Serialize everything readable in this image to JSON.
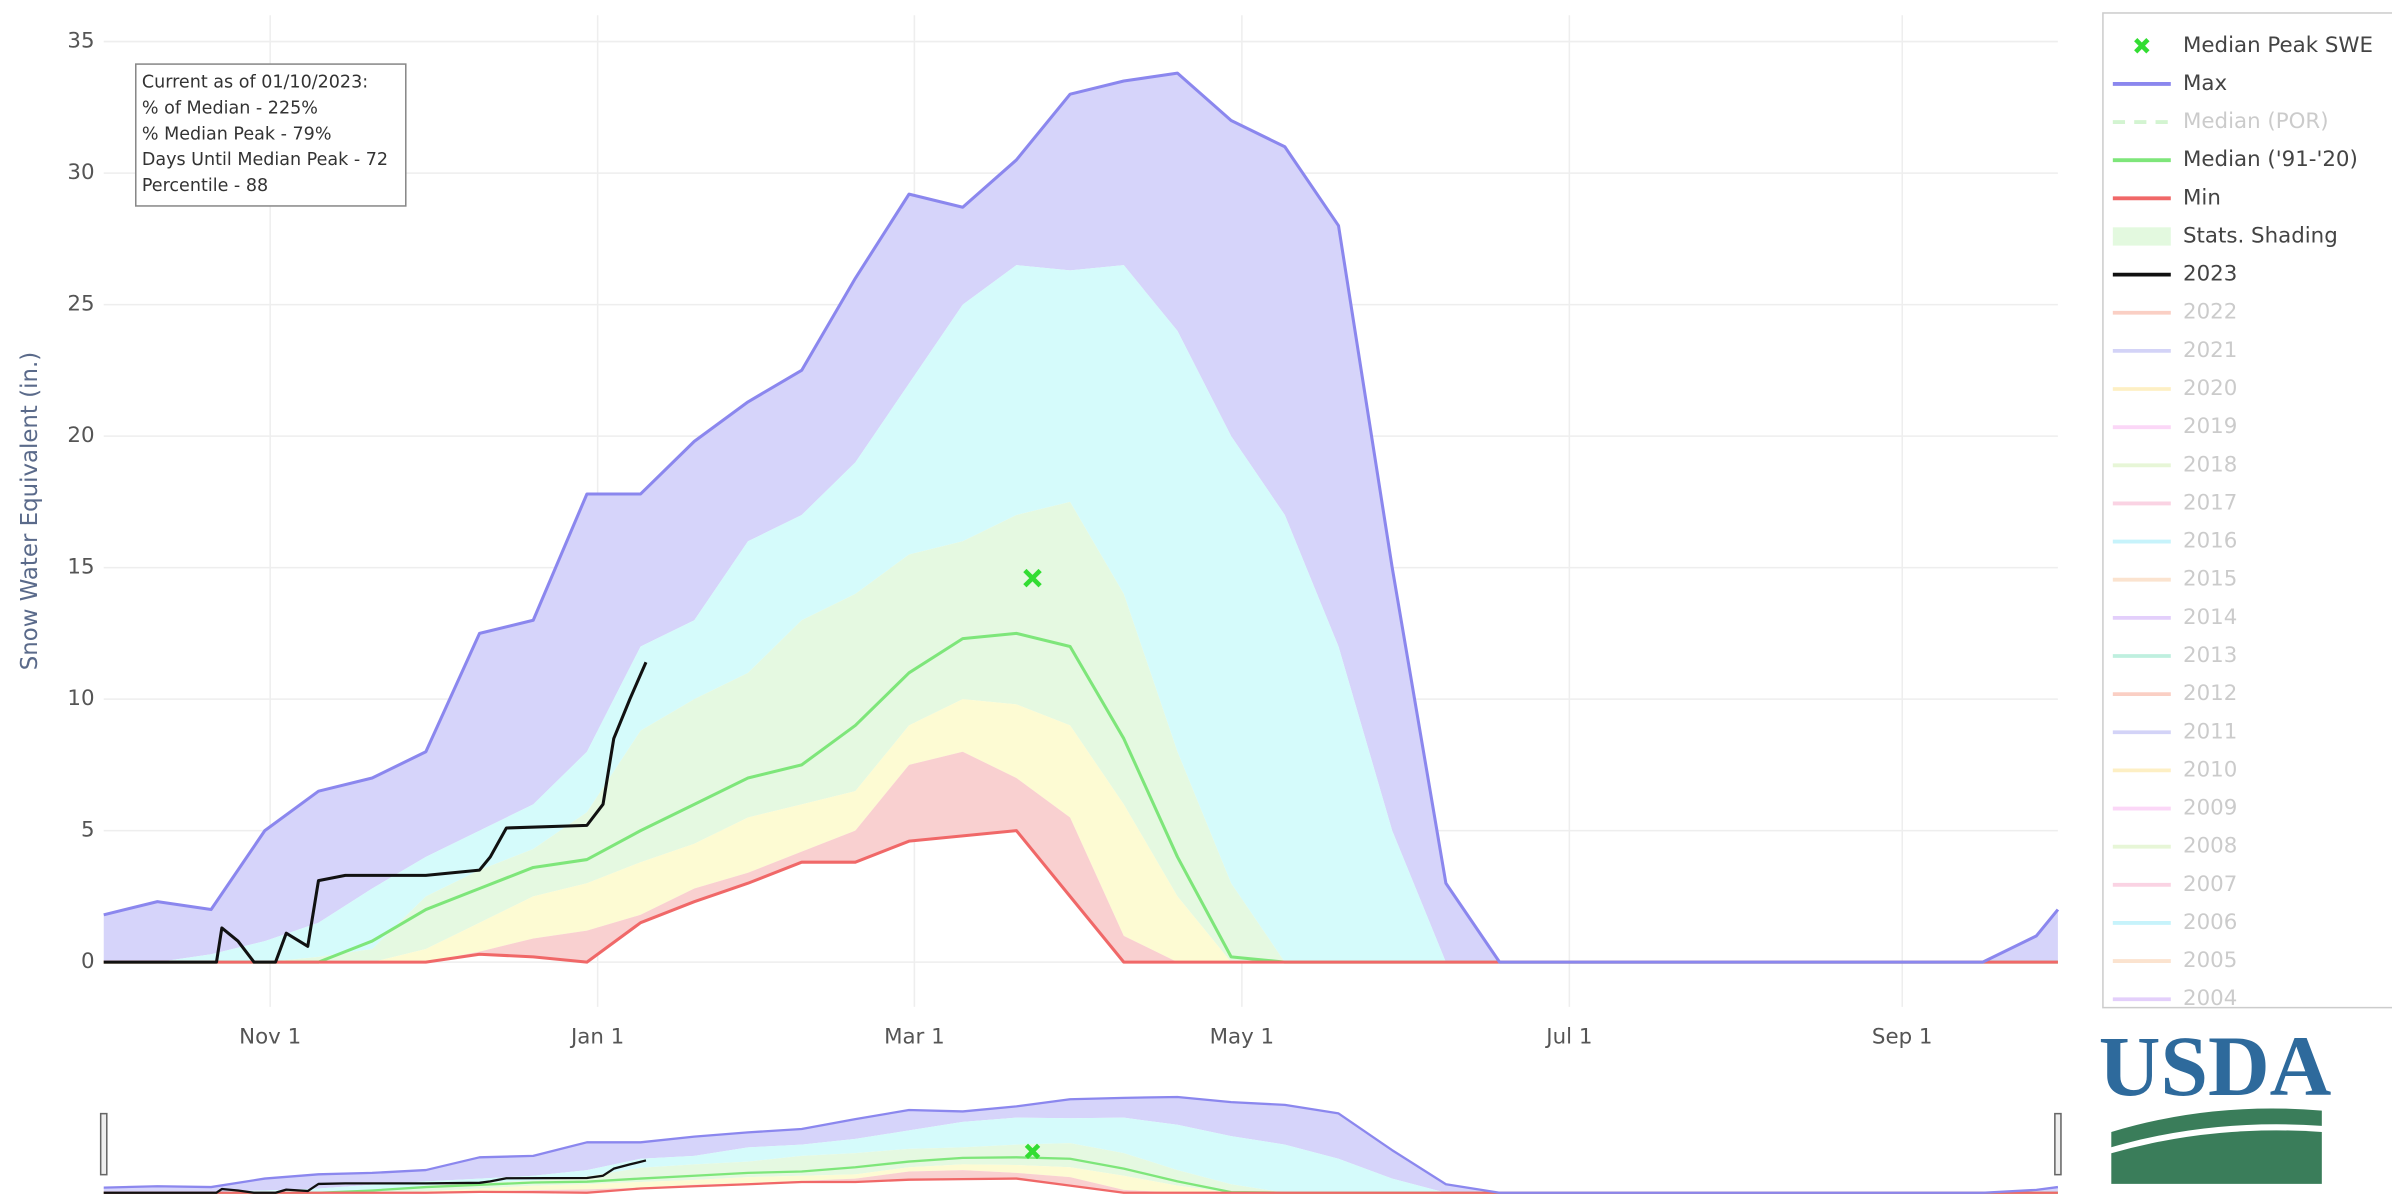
{
  "chart_data": {
    "type": "area",
    "y_label": "Snow Water Equivalent (in.)",
    "annotation": [
      "Current as of 01/10/2023:",
      "% of Median - 225%",
      "% Median Peak - 79%",
      "Days Until Median Peak - 72",
      "Percentile - 88"
    ],
    "x": [
      0,
      10,
      20,
      30,
      40,
      50,
      60,
      70,
      80,
      90,
      100,
      110,
      120,
      130,
      140,
      150,
      160,
      170,
      180,
      190,
      200,
      210,
      220,
      230,
      240,
      250,
      260,
      270,
      280,
      290,
      300,
      310,
      320,
      330,
      340,
      350,
      360,
      364
    ],
    "xlim": [
      0,
      364
    ],
    "xticks": [
      {
        "value": 31,
        "label": "Nov 1"
      },
      {
        "value": 92,
        "label": "Jan 1"
      },
      {
        "value": 151,
        "label": "Mar 1"
      },
      {
        "value": 212,
        "label": "May 1"
      },
      {
        "value": 273,
        "label": "Jul 1"
      },
      {
        "value": 335,
        "label": "Sep 1"
      }
    ],
    "ylim": [
      -1.7,
      36
    ],
    "yticks": [
      0,
      5,
      10,
      15,
      20,
      25,
      30,
      35
    ],
    "grid": true,
    "series": [
      {
        "name": "Max",
        "color": "#8b87ee",
        "values": [
          1.8,
          2.3,
          2.0,
          5.0,
          6.5,
          7.0,
          8.0,
          12.5,
          13.0,
          17.8,
          17.8,
          19.8,
          21.3,
          22.5,
          26,
          29.2,
          28.7,
          30.5,
          33,
          33.5,
          33.8,
          32,
          31,
          28,
          15,
          3,
          0,
          0,
          0,
          0,
          0,
          0,
          0,
          0,
          0,
          0,
          1.0,
          2.0
        ]
      },
      {
        "name": "Median ('91-'20)",
        "color": "#7ee67a",
        "values": [
          0,
          0,
          0,
          0,
          0,
          0.8,
          2.0,
          2.8,
          3.6,
          3.9,
          5.0,
          6.0,
          7.0,
          7.5,
          9.0,
          11,
          12.3,
          12.5,
          12,
          8.5,
          4,
          0.2,
          0,
          0,
          0,
          0,
          0,
          0,
          0,
          0,
          0,
          0,
          0,
          0,
          0,
          0,
          0,
          0
        ]
      },
      {
        "name": "Min",
        "color": "#f06868",
        "values": [
          0,
          0,
          0,
          0,
          0,
          0,
          0,
          0.3,
          0.2,
          0,
          1.5,
          2.3,
          3.0,
          3.8,
          3.8,
          4.6,
          4.8,
          5.0,
          2.5,
          0,
          0,
          0,
          0,
          0,
          0,
          0,
          0,
          0,
          0,
          0,
          0,
          0,
          0,
          0,
          0,
          0,
          0,
          0
        ]
      },
      {
        "name": "2023",
        "color": "#111111",
        "x": [
          0,
          21,
          22,
          25,
          28,
          32,
          34,
          38,
          40,
          45,
          60,
          70,
          72,
          75,
          90,
          93,
          95,
          98,
          101
        ],
        "values": [
          0,
          0,
          1.3,
          0.8,
          0,
          0,
          1.1,
          0.6,
          3.1,
          3.3,
          3.3,
          3.5,
          4.0,
          5.1,
          5.2,
          6,
          8.5,
          10,
          11.4
        ]
      }
    ],
    "shading": {
      "colors": [
        "#d6d4fa",
        "#d5fbfb",
        "#e5f9e1",
        "#fdfbd3",
        "#f9d0d0"
      ],
      "bounds": [
        [
          0,
          0,
          0.3,
          0.8,
          1.5,
          2.8,
          4,
          5,
          6,
          8,
          12,
          13,
          16,
          17,
          19,
          22,
          25,
          26.5,
          26.3,
          26.5,
          24,
          20,
          17,
          12,
          5,
          0,
          0,
          0,
          0,
          0,
          0,
          0,
          0,
          0,
          0,
          0,
          0,
          0
        ],
        [
          0,
          0,
          0,
          0,
          0.2,
          0.5,
          2.5,
          3.5,
          4.3,
          5.7,
          8.8,
          10,
          11,
          13,
          14,
          15.5,
          16,
          17,
          17.5,
          14,
          8,
          3,
          0,
          0,
          0,
          0,
          0,
          0,
          0,
          0,
          0,
          0,
          0,
          0,
          0,
          0,
          0,
          0
        ],
        [
          0,
          0,
          0,
          0,
          0,
          0,
          0.5,
          1.5,
          2.5,
          3,
          3.8,
          4.5,
          5.5,
          6,
          6.5,
          9,
          10,
          9.8,
          9,
          6,
          2.5,
          0,
          0,
          0,
          0,
          0,
          0,
          0,
          0,
          0,
          0,
          0,
          0,
          0,
          0,
          0,
          0,
          0
        ],
        [
          0,
          0,
          0,
          0,
          0,
          0,
          0,
          0.4,
          0.9,
          1.2,
          1.8,
          2.8,
          3.4,
          4.2,
          5,
          7.5,
          8,
          7,
          5.5,
          1,
          0,
          0,
          0,
          0,
          0,
          0,
          0,
          0,
          0,
          0,
          0,
          0,
          0,
          0,
          0,
          0,
          0,
          0
        ]
      ]
    },
    "median_peak": {
      "x": 173,
      "value": 14.6,
      "legend": 0
    },
    "legend": [
      {
        "name": "Median Peak SWE",
        "color": "#33dd33",
        "symbol": "x",
        "visible": true
      },
      {
        "series": 0,
        "visible": true
      },
      {
        "name": "Median (POR)",
        "color": "#a8eaa4",
        "symbol": "dash",
        "visible": false
      },
      {
        "series": 1,
        "visible": true
      },
      {
        "series": 2,
        "visible": true
      },
      {
        "name": "Stats. Shading",
        "color": "#e3f9df",
        "symbol": "rect",
        "visible": true
      },
      {
        "series": 3,
        "visible": true
      },
      {
        "name": "2022",
        "color": "#f6a08a",
        "symbol": "line",
        "visible": false
      },
      {
        "name": "2021",
        "color": "#a8a8f0",
        "symbol": "line",
        "visible": false
      },
      {
        "name": "2020",
        "color": "#fde08a",
        "symbol": "line",
        "visible": false
      },
      {
        "name": "2019",
        "color": "#f8b0f0",
        "symbol": "line",
        "visible": false
      },
      {
        "name": "2018",
        "color": "#d0eeb0",
        "symbol": "line",
        "visible": false
      },
      {
        "name": "2017",
        "color": "#f6a8c8",
        "symbol": "line",
        "visible": false
      },
      {
        "name": "2016",
        "color": "#90e8f8",
        "symbol": "line",
        "visible": false
      },
      {
        "name": "2015",
        "color": "#f8c8a0",
        "symbol": "line",
        "visible": false
      },
      {
        "name": "2014",
        "color": "#c8a0f8",
        "symbol": "line",
        "visible": false
      },
      {
        "name": "2013",
        "color": "#80e0c0",
        "symbol": "line",
        "visible": false
      },
      {
        "name": "2012",
        "color": "#f6a08a",
        "symbol": "line",
        "visible": false
      },
      {
        "name": "2011",
        "color": "#a8a8f0",
        "symbol": "line",
        "visible": false
      },
      {
        "name": "2010",
        "color": "#fde08a",
        "symbol": "line",
        "visible": false
      },
      {
        "name": "2009",
        "color": "#f8b0f0",
        "symbol": "line",
        "visible": false
      },
      {
        "name": "2008",
        "color": "#d0eeb0",
        "symbol": "line",
        "visible": false
      },
      {
        "name": "2007",
        "color": "#f6a8c8",
        "symbol": "line",
        "visible": false
      },
      {
        "name": "2006",
        "color": "#90e8f8",
        "symbol": "line",
        "visible": false
      },
      {
        "name": "2005",
        "color": "#f8c8a0",
        "symbol": "line",
        "visible": false
      },
      {
        "name": "2004",
        "color": "#c8a0f8",
        "symbol": "line",
        "visible": false
      }
    ],
    "logo": "USDA"
  }
}
